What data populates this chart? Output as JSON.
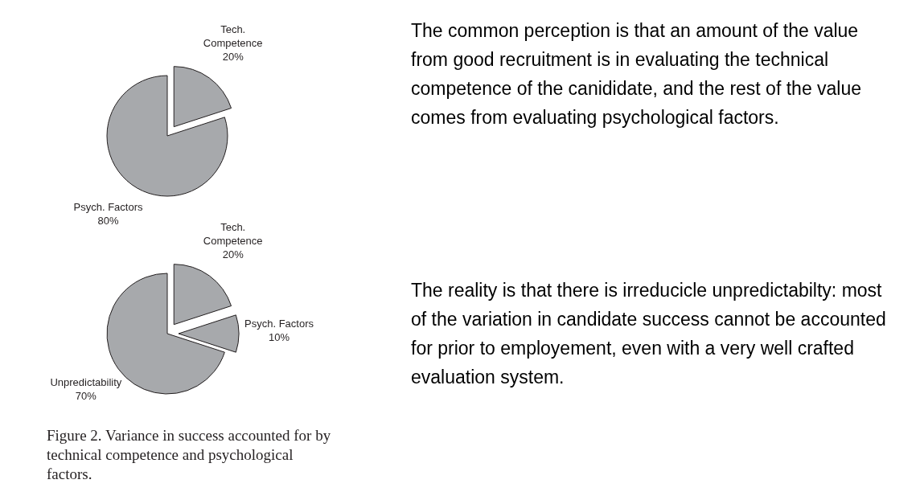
{
  "chart_data": [
    {
      "type": "pie",
      "categories": [
        "Tech. Competence",
        "Psych. Factors"
      ],
      "values": [
        20,
        80
      ],
      "colors": [
        "#a7a9ac",
        "#a7a9ac"
      ],
      "value_labels": [
        "20%",
        "80%"
      ],
      "annotations": [
        "The common perception is that an amount of the value from good recruitment is in evaluating the technical competence of the canididate, and the rest of the value comes from evaluating psychological factors."
      ]
    },
    {
      "type": "pie",
      "categories": [
        "Tech. Competence",
        "Psych. Factors",
        "Unpredictability"
      ],
      "values": [
        20,
        10,
        70
      ],
      "colors": [
        "#a7a9ac",
        "#a7a9ac",
        "#a7a9ac"
      ],
      "value_labels": [
        "20%",
        "10%",
        "70%"
      ],
      "annotations": [
        "The reality is that there is irreducicle unpredictabilty: most of the variation in candidate success cannot be accounted for prior to employement, even with a very well crafted evaluation system.",
        "Figure 2.  Variance in success accounted for by technical competence and psychological factors."
      ]
    }
  ]
}
